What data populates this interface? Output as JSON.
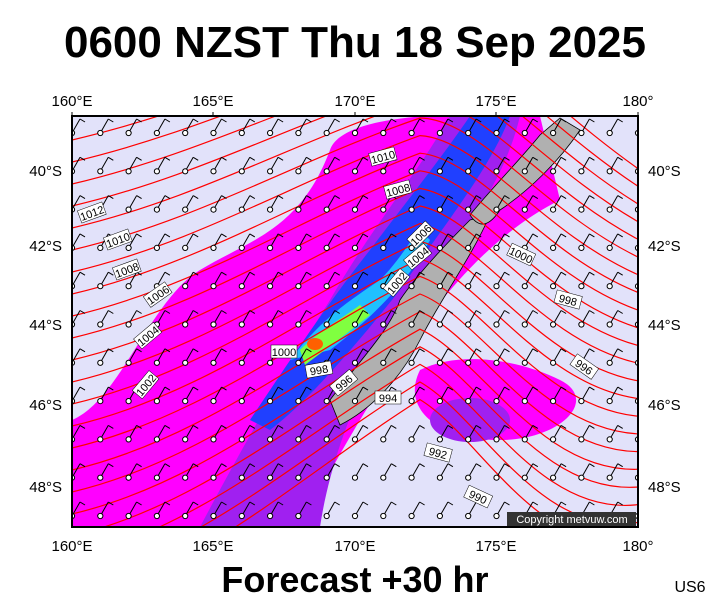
{
  "header": {
    "title": "0600 NZST Thu 18 Sep 2025"
  },
  "map": {
    "lon_labels": [
      "160°E",
      "165°E",
      "170°E",
      "175°E",
      "180°"
    ],
    "lat_labels": [
      "40°S",
      "42°S",
      "44°S",
      "46°S",
      "48°S"
    ],
    "isobar_labels": [
      "1010",
      "1008",
      "1012",
      "1010",
      "1008",
      "1006",
      "1004",
      "1002",
      "1006",
      "1000",
      "998",
      "1004",
      "1000",
      "998",
      "996",
      "1002",
      "996",
      "994",
      "992",
      "990"
    ],
    "copyright": "Copyright metvuw.com"
  },
  "footer": {
    "forecast": "Forecast +30 hr",
    "code": "US6"
  }
}
